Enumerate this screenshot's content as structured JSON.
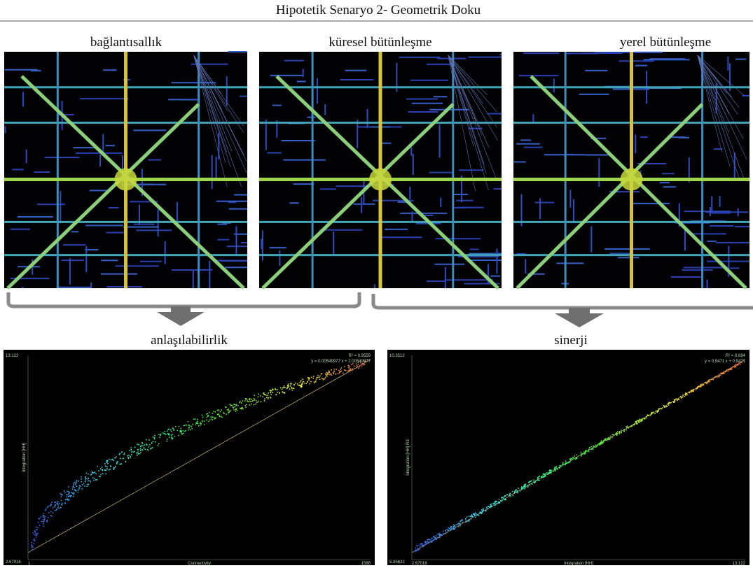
{
  "figure": {
    "title": "Hipotetik Senaryo 2- Geometrik Doku",
    "maps": [
      {
        "label": "bağlantısallık"
      },
      {
        "label": "küresel bütünleşme"
      },
      {
        "label": "yerel bütünleşme"
      }
    ],
    "plots": [
      {
        "label": "anlaşılabilirlik",
        "y_top": "13.122",
        "y_bottom": "2.67016",
        "x_left": "1",
        "x_right": "1588",
        "x_axis": "Connectivity",
        "y_axis": "Integration [HH]",
        "r2": "R² = 0.9559",
        "equation": "y = 0.00549977 x + 2.00549977"
      },
      {
        "label": "sinerji",
        "y_top": "10.3512",
        "y_bottom": "5.35632",
        "x_left": "2.67016",
        "x_right": "13.122",
        "x_axis": "Integration [HH]",
        "y_axis": "Integration [HH] R3",
        "r2": "R² = 0.894",
        "equation": "y = 0.9471 x + 0.9471"
      }
    ]
  }
}
